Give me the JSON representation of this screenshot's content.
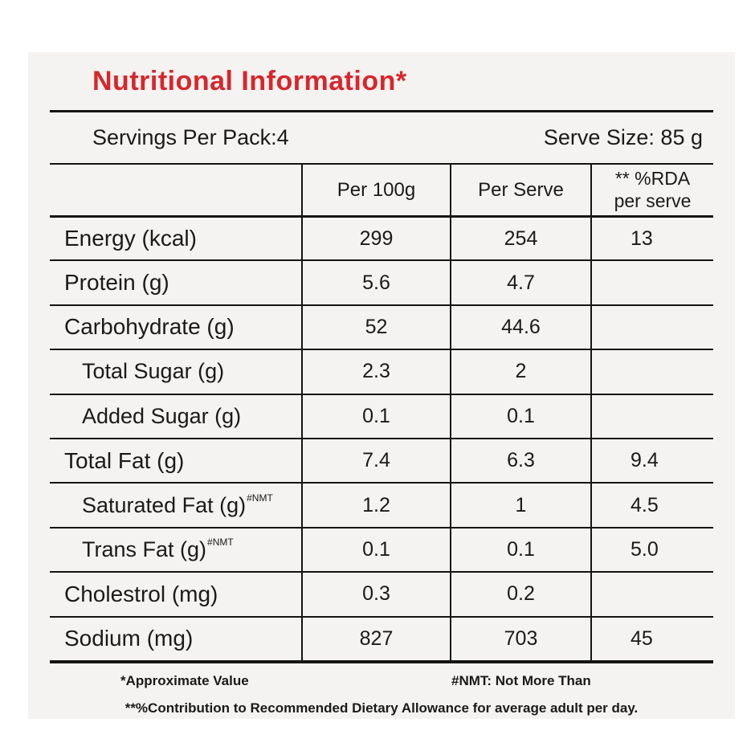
{
  "title": "Nutritional Information*",
  "serving_row": {
    "servings_per_pack": "Servings Per Pack:4",
    "serve_size": "Serve Size: 85 g"
  },
  "table": {
    "headers": {
      "col2": "Per 100g",
      "col3": "Per Serve",
      "col4_line1": "** %RDA",
      "col4_line2": "per serve"
    },
    "rows": [
      {
        "label": "Energy (kcal)",
        "sup": "",
        "per_100g": "299",
        "per_serve": "254",
        "rda": "13"
      },
      {
        "label": "Protein (g)",
        "sup": "",
        "per_100g": "5.6",
        "per_serve": "4.7",
        "rda": ""
      },
      {
        "label": "Carbohydrate (g)",
        "sup": "",
        "per_100g": "52",
        "per_serve": "44.6",
        "rda": ""
      },
      {
        "label": "Total Sugar (g)",
        "sup": "",
        "per_100g": "2.3",
        "per_serve": "2",
        "rda": ""
      },
      {
        "label": "Added Sugar (g)",
        "sup": "",
        "per_100g": "0.1",
        "per_serve": "0.1",
        "rda": ""
      },
      {
        "label": "Total Fat (g)",
        "sup": "",
        "per_100g": "7.4",
        "per_serve": "6.3",
        "rda": "9.4"
      },
      {
        "label": "Saturated Fat (g)",
        "sup": "#NMT",
        "per_100g": "1.2",
        "per_serve": "1",
        "rda": "4.5"
      },
      {
        "label": "Trans Fat (g)",
        "sup": "#NMT",
        "per_100g": "0.1",
        "per_serve": "0.1",
        "rda": "5.0"
      },
      {
        "label": "Cholestrol (mg)",
        "sup": "",
        "per_100g": "0.3",
        "per_serve": "0.2",
        "rda": ""
      },
      {
        "label": "Sodium (mg)",
        "sup": "",
        "per_100g": "827",
        "per_serve": "703",
        "rda": "45"
      }
    ]
  },
  "footnotes": {
    "approx": "*Approximate Value",
    "nmt": "#NMT: Not More Than",
    "rda": "**%Contribution to Recommended Dietary Allowance for average adult per day."
  },
  "colors": {
    "accent": "#d8262c",
    "card_bg": "#f4f3f1",
    "text": "#1a1a1a",
    "line": "#141414"
  }
}
